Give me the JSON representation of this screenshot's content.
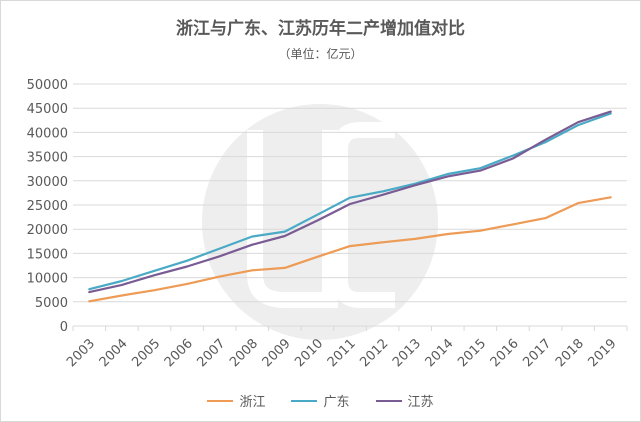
{
  "chart_data": {
    "type": "line",
    "title": "浙江与广东、江苏历年二产增加值对比",
    "subtitle": "（单位：亿元）",
    "categories": [
      "2003",
      "2004",
      "2005",
      "2006",
      "2007",
      "2008",
      "2009",
      "2010",
      "2011",
      "2012",
      "2013",
      "2014",
      "2015",
      "2016",
      "2017",
      "2018",
      "2019"
    ],
    "ylim": [
      0,
      50000
    ],
    "yticks": [
      0,
      5000,
      10000,
      15000,
      20000,
      25000,
      30000,
      35000,
      40000,
      45000,
      50000
    ],
    "grid": true,
    "legend_position": "bottom",
    "series": [
      {
        "name": "浙江",
        "color": "#ed9b55",
        "values": [
          5100,
          6300,
          7400,
          8700,
          10200,
          11500,
          12000,
          14300,
          16500,
          17300,
          18000,
          19000,
          19700,
          21000,
          22300,
          25400,
          26600
        ]
      },
      {
        "name": "广东",
        "color": "#4aaac6",
        "values": [
          7600,
          9300,
          11400,
          13500,
          16000,
          18500,
          19500,
          23000,
          26500,
          27800,
          29400,
          31400,
          32600,
          35200,
          38000,
          41500,
          43900
        ]
      },
      {
        "name": "江苏",
        "color": "#7a5c95",
        "values": [
          7000,
          8500,
          10500,
          12300,
          14400,
          16800,
          18600,
          21800,
          25200,
          27100,
          29100,
          30900,
          32100,
          34600,
          38500,
          42100,
          44300
        ]
      }
    ]
  }
}
